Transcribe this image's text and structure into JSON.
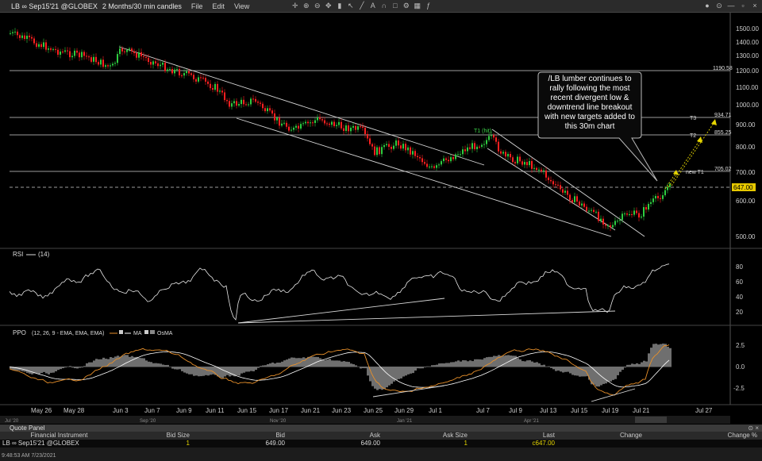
{
  "window": {
    "title": "LB ∞ Sep15'21 @GLOBEX",
    "period": "2 Months/30 min candles",
    "menus": [
      "File",
      "Edit",
      "View"
    ]
  },
  "price_axis": {
    "ticks": [
      "1500.00",
      "1400.00",
      "1300.00",
      "1200.00",
      "1100.00",
      "1000.00",
      "900.00",
      "800.00",
      "700.00",
      "600.00",
      "500.00"
    ]
  },
  "levels": {
    "l1190": "1190.58",
    "l934": "934.71",
    "l855": "855.25",
    "l705": "705.02",
    "last": "647.00"
  },
  "targets": {
    "t3": "T3",
    "t2": "T2",
    "new_t1": "new T1",
    "t1_hit": "T1 (hit)"
  },
  "annotation": "/LB lumber continues to rally following the most recent divergent low & downtrend line breakout with new targets added to this 30m chart",
  "rsi": {
    "label": "RSI",
    "params": "(14)",
    "ticks": [
      "80",
      "60",
      "40",
      "20"
    ]
  },
  "ppo": {
    "label": "PPO",
    "params": "(12, 26, 9 - EMA, EMA, EMA)",
    "legend": [
      "MA",
      "OsMA"
    ],
    "ticks": [
      "2.5",
      "0.0",
      "-2.5"
    ]
  },
  "time_axis": {
    "dates": [
      "May 26",
      "May 28",
      "Jun 3",
      "Jun 7",
      "Jun 9",
      "Jun 11",
      "Jun 15",
      "Jun 17",
      "Jun 21",
      "Jun 23",
      "Jun 25",
      "Jun 29",
      "Jul 1",
      "Jul 7",
      "Jul 9",
      "Jul 13",
      "Jul 15",
      "Jul 19",
      "Jul 21",
      "Jul 27"
    ],
    "months": [
      "Jul '20",
      "Sep '20",
      "Nov '20",
      "Jan '21",
      "Apr '21",
      "Jun '21"
    ]
  },
  "quote_panel": {
    "title": "Quote Panel",
    "columns": [
      "Financial Instrument",
      "Bid Size",
      "Bid",
      "Ask",
      "Ask Size",
      "Last",
      "Change",
      "Change %"
    ],
    "row": {
      "instrument": "LB ∞ Sep15'21 @GLOBEX",
      "bid_size": "1",
      "bid": "649.00",
      "ask": "649.00",
      "ask_size": "1",
      "last": "c647.00",
      "change": "",
      "change_pct": ""
    }
  },
  "status": "9:48:53 AM 7/23/2021",
  "colors": {
    "up": "#2ecc40",
    "down": "#ff2020",
    "ppo": "#e8902a",
    "signal": "#ffffff",
    "last_price": "#e6c800"
  }
}
